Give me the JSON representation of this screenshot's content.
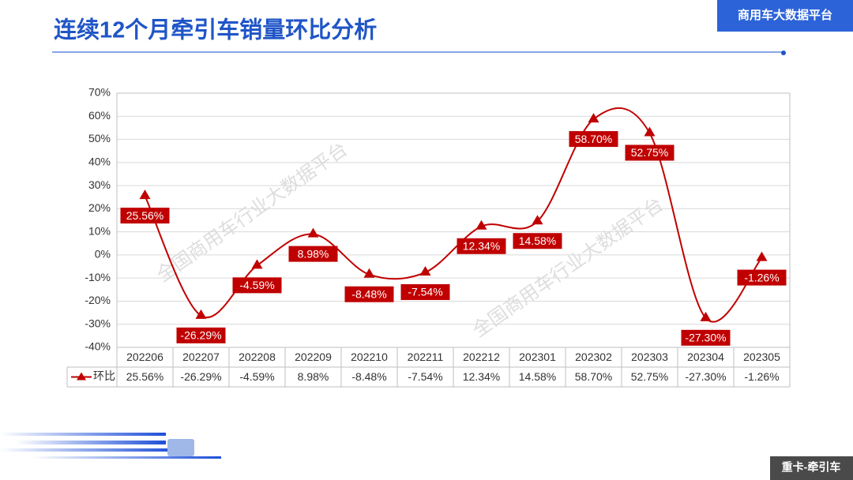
{
  "header": {
    "badge": "商用车大数据平台"
  },
  "footer": {
    "label": "重卡-牵引车"
  },
  "watermark": "全国商用车行业大数据平台",
  "chart_data": {
    "type": "line",
    "title": "连续12个月牵引车销量环比分析",
    "categories": [
      "202206",
      "202207",
      "202208",
      "202209",
      "202210",
      "202211",
      "202212",
      "202301",
      "202302",
      "202303",
      "202304",
      "202305"
    ],
    "series": [
      {
        "name": "环比",
        "color": "#c00000",
        "values": [
          25.56,
          -26.29,
          -4.59,
          8.98,
          -8.48,
          -7.54,
          12.34,
          14.58,
          58.7,
          52.75,
          -27.3,
          -1.26
        ],
        "value_labels": [
          "25.56%",
          "-26.29%",
          "-4.59%",
          "8.98%",
          "-8.48%",
          "-7.54%",
          "12.34%",
          "14.58%",
          "58.70%",
          "52.75%",
          "-27.30%",
          "-1.26%"
        ]
      }
    ],
    "ylim": [
      -40,
      70
    ],
    "yticks": [
      {
        "value": -40,
        "label": "-40%"
      },
      {
        "value": -30,
        "label": "-30%"
      },
      {
        "value": -20,
        "label": "-20%"
      },
      {
        "value": -10,
        "label": "-10%"
      },
      {
        "value": 0,
        "label": "0%"
      },
      {
        "value": 10,
        "label": "10%"
      },
      {
        "value": 20,
        "label": "20%"
      },
      {
        "value": 30,
        "label": "30%"
      },
      {
        "value": 40,
        "label": "40%"
      },
      {
        "value": 50,
        "label": "50%"
      },
      {
        "value": 60,
        "label": "60%"
      },
      {
        "value": 70,
        "label": "70%"
      }
    ],
    "grid": true
  }
}
